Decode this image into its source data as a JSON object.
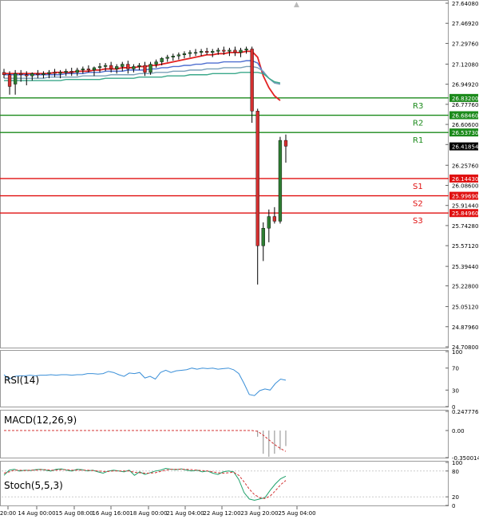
{
  "colors": {
    "up": "#2e7d32",
    "down": "#d32f2f",
    "wick": "#000000",
    "resistance": "#1b8a1b",
    "support": "#e01010",
    "ma_red": "#e32222",
    "ma_blue": "#4f6fd0",
    "ma_teal": "#3aa88a",
    "ma_gray": "#7aa0b8",
    "rsi": "#3a8fd8",
    "macd_signal": "#d33333",
    "macd_hist": "#8a8a8a",
    "stoch_k": "#1ea06a",
    "stoch_d": "#d33333"
  },
  "main": {
    "axis_ticks": [
      "27.64080",
      "27.46920",
      "27.29760",
      "27.12080",
      "26.94920",
      "26.77760",
      "26.60600",
      "26.43440",
      "26.25760",
      "26.08600",
      "25.91440",
      "25.74280",
      "25.57120",
      "25.39440",
      "25.22800",
      "25.05120",
      "24.87960",
      "24.70800"
    ],
    "current_price": "26.41854",
    "levels": [
      {
        "name": "R3",
        "value": "26.83200",
        "kind": "resistance"
      },
      {
        "name": "R2",
        "value": "26.68460",
        "kind": "resistance"
      },
      {
        "name": "R1",
        "value": "26.53730",
        "kind": "resistance"
      },
      {
        "name": "S1",
        "value": "26.14430",
        "kind": "support"
      },
      {
        "name": "S2",
        "value": "25.99690",
        "kind": "support"
      },
      {
        "name": "S3",
        "value": "25.84960",
        "kind": "support"
      }
    ]
  },
  "rsi": {
    "label": "RSI(14)",
    "ticks": [
      "100",
      "70",
      "30",
      "0"
    ]
  },
  "macd": {
    "label": "MACD(12,26,9)",
    "ticks": [
      "0.247776",
      "0.00",
      "-0.350014"
    ]
  },
  "stoch": {
    "label": "Stoch(5,5,3)",
    "ticks": [
      "100",
      "80",
      "20",
      "0"
    ]
  },
  "x_labels": [
    "20:00",
    "14 Aug 00:00",
    "15 Aug 08:00",
    "16 Aug 16:00",
    "18 Aug 00:00",
    "21 Aug 04:00",
    "22 Aug 12:00",
    "23 Aug 20:00",
    "25 Aug 04:00"
  ],
  "chart_data": {
    "type": "candlestick",
    "y_range": [
      24.708,
      27.6408
    ],
    "candles": [
      {
        "o": 27.05,
        "h": 27.08,
        "l": 27.0,
        "c": 27.03
      },
      {
        "o": 27.03,
        "h": 27.06,
        "l": 26.86,
        "c": 26.93
      },
      {
        "o": 26.95,
        "h": 27.07,
        "l": 26.86,
        "c": 27.04
      },
      {
        "o": 27.04,
        "h": 27.07,
        "l": 26.97,
        "c": 27.03
      },
      {
        "o": 27.03,
        "h": 27.06,
        "l": 26.94,
        "c": 27.02
      },
      {
        "o": 27.02,
        "h": 27.05,
        "l": 26.98,
        "c": 27.04
      },
      {
        "o": 27.04,
        "h": 27.07,
        "l": 27.0,
        "c": 27.03
      },
      {
        "o": 27.03,
        "h": 27.06,
        "l": 27.0,
        "c": 27.04
      },
      {
        "o": 27.04,
        "h": 27.07,
        "l": 27.0,
        "c": 27.05
      },
      {
        "o": 27.05,
        "h": 27.08,
        "l": 27.01,
        "c": 27.04
      },
      {
        "o": 27.04,
        "h": 27.07,
        "l": 27.0,
        "c": 27.05
      },
      {
        "o": 27.05,
        "h": 27.08,
        "l": 27.02,
        "c": 27.06
      },
      {
        "o": 27.06,
        "h": 27.09,
        "l": 27.02,
        "c": 27.05
      },
      {
        "o": 27.05,
        "h": 27.09,
        "l": 27.02,
        "c": 27.07
      },
      {
        "o": 27.07,
        "h": 27.1,
        "l": 27.04,
        "c": 27.08
      },
      {
        "o": 27.08,
        "h": 27.11,
        "l": 27.05,
        "c": 27.07
      },
      {
        "o": 27.07,
        "h": 27.1,
        "l": 27.02,
        "c": 27.09
      },
      {
        "o": 27.09,
        "h": 27.13,
        "l": 27.05,
        "c": 27.1
      },
      {
        "o": 27.1,
        "h": 27.13,
        "l": 27.06,
        "c": 27.11
      },
      {
        "o": 27.11,
        "h": 27.14,
        "l": 27.05,
        "c": 27.08
      },
      {
        "o": 27.08,
        "h": 27.12,
        "l": 27.04,
        "c": 27.1
      },
      {
        "o": 27.1,
        "h": 27.14,
        "l": 27.06,
        "c": 27.12
      },
      {
        "o": 27.12,
        "h": 27.15,
        "l": 27.04,
        "c": 27.08
      },
      {
        "o": 27.08,
        "h": 27.12,
        "l": 27.05,
        "c": 27.1
      },
      {
        "o": 27.1,
        "h": 27.13,
        "l": 27.07,
        "c": 27.11
      },
      {
        "o": 27.11,
        "h": 27.14,
        "l": 27.02,
        "c": 27.05
      },
      {
        "o": 27.05,
        "h": 27.14,
        "l": 27.03,
        "c": 27.12
      },
      {
        "o": 27.12,
        "h": 27.16,
        "l": 27.09,
        "c": 27.14
      },
      {
        "o": 27.14,
        "h": 27.18,
        "l": 27.11,
        "c": 27.17
      },
      {
        "o": 27.17,
        "h": 27.2,
        "l": 27.14,
        "c": 27.18
      },
      {
        "o": 27.18,
        "h": 27.21,
        "l": 27.15,
        "c": 27.19
      },
      {
        "o": 27.19,
        "h": 27.22,
        "l": 27.16,
        "c": 27.2
      },
      {
        "o": 27.2,
        "h": 27.23,
        "l": 27.17,
        "c": 27.21
      },
      {
        "o": 27.21,
        "h": 27.24,
        "l": 27.18,
        "c": 27.22
      },
      {
        "o": 27.22,
        "h": 27.25,
        "l": 27.19,
        "c": 27.22
      },
      {
        "o": 27.22,
        "h": 27.25,
        "l": 27.19,
        "c": 27.23
      },
      {
        "o": 27.23,
        "h": 27.26,
        "l": 27.2,
        "c": 27.22
      },
      {
        "o": 27.22,
        "h": 27.25,
        "l": 27.18,
        "c": 27.23
      },
      {
        "o": 27.23,
        "h": 27.26,
        "l": 27.2,
        "c": 27.24
      },
      {
        "o": 27.24,
        "h": 27.27,
        "l": 27.2,
        "c": 27.23
      },
      {
        "o": 27.23,
        "h": 27.26,
        "l": 27.19,
        "c": 27.24
      },
      {
        "o": 27.24,
        "h": 27.27,
        "l": 27.19,
        "c": 27.22
      },
      {
        "o": 27.22,
        "h": 27.26,
        "l": 27.18,
        "c": 27.24
      },
      {
        "o": 27.24,
        "h": 27.27,
        "l": 27.21,
        "c": 27.25
      },
      {
        "o": 27.25,
        "h": 27.27,
        "l": 26.62,
        "c": 26.72
      },
      {
        "o": 26.72,
        "h": 26.74,
        "l": 25.24,
        "c": 25.57
      },
      {
        "o": 25.57,
        "h": 25.77,
        "l": 25.44,
        "c": 25.72
      },
      {
        "o": 25.72,
        "h": 25.88,
        "l": 25.6,
        "c": 25.82
      },
      {
        "o": 25.82,
        "h": 25.9,
        "l": 25.76,
        "c": 25.78
      },
      {
        "o": 25.78,
        "h": 26.5,
        "l": 25.76,
        "c": 26.47
      },
      {
        "o": 26.47,
        "h": 26.52,
        "l": 26.28,
        "c": 26.42
      }
    ],
    "moving_averages": [
      {
        "color_key": "ma_red",
        "values": [
          27.04,
          27.04,
          27.04,
          27.04,
          27.04,
          27.04,
          27.04,
          27.04,
          27.04,
          27.05,
          27.05,
          27.05,
          27.05,
          27.06,
          27.06,
          27.06,
          27.07,
          27.07,
          27.08,
          27.08,
          27.08,
          27.09,
          27.09,
          27.09,
          27.1,
          27.1,
          27.11,
          27.11,
          27.12,
          27.13,
          27.14,
          27.15,
          27.16,
          27.17,
          27.18,
          27.19,
          27.2,
          27.2,
          27.21,
          27.21,
          27.22,
          27.22,
          27.22,
          27.23,
          27.23,
          27.18,
          27.02,
          26.92,
          26.85,
          26.81
        ]
      },
      {
        "color_key": "ma_blue",
        "values": [
          27.03,
          27.03,
          27.03,
          27.03,
          27.03,
          27.03,
          27.03,
          27.03,
          27.03,
          27.03,
          27.03,
          27.04,
          27.04,
          27.04,
          27.04,
          27.05,
          27.05,
          27.05,
          27.06,
          27.06,
          27.06,
          27.06,
          27.07,
          27.07,
          27.07,
          27.07,
          27.08,
          27.08,
          27.09,
          27.09,
          27.1,
          27.1,
          27.11,
          27.11,
          27.12,
          27.12,
          27.13,
          27.13,
          27.13,
          27.14,
          27.14,
          27.14,
          27.14,
          27.15,
          27.15,
          27.13,
          27.05,
          27.0,
          26.96,
          26.95
        ]
      },
      {
        "color_key": "ma_gray",
        "values": [
          27.0,
          27.0,
          27.0,
          27.0,
          27.0,
          27.0,
          27.0,
          27.0,
          27.01,
          27.01,
          27.01,
          27.01,
          27.01,
          27.01,
          27.02,
          27.02,
          27.02,
          27.02,
          27.02,
          27.03,
          27.03,
          27.03,
          27.03,
          27.03,
          27.04,
          27.04,
          27.04,
          27.05,
          27.05,
          27.05,
          27.06,
          27.06,
          27.06,
          27.07,
          27.07,
          27.07,
          27.08,
          27.08,
          27.08,
          27.09,
          27.09,
          27.09,
          27.09,
          27.1,
          27.1,
          27.09,
          27.06,
          27.0,
          26.96,
          26.95
        ]
      },
      {
        "color_key": "ma_teal",
        "values": [
          26.98,
          26.98,
          26.98,
          26.98,
          26.98,
          26.98,
          26.98,
          26.98,
          26.98,
          26.98,
          26.98,
          26.99,
          26.99,
          26.99,
          26.99,
          26.99,
          26.99,
          26.99,
          27.0,
          27.0,
          27.0,
          27.0,
          27.0,
          27.0,
          27.01,
          27.01,
          27.01,
          27.01,
          27.01,
          27.02,
          27.02,
          27.02,
          27.02,
          27.03,
          27.03,
          27.03,
          27.03,
          27.04,
          27.04,
          27.04,
          27.04,
          27.04,
          27.05,
          27.05,
          27.05,
          27.05,
          27.04,
          27.0,
          26.97,
          26.96
        ]
      }
    ],
    "rsi": [
      58,
      50,
      55,
      56,
      56,
      57,
      56,
      57,
      57,
      58,
      57,
      58,
      58,
      57,
      58,
      58,
      60,
      60,
      59,
      60,
      64,
      62,
      58,
      55,
      61,
      60,
      62,
      52,
      55,
      50,
      62,
      66,
      62,
      65,
      66,
      67,
      70,
      68,
      70,
      69,
      70,
      68,
      69,
      70,
      67,
      60,
      42,
      22,
      20,
      29,
      32,
      30,
      42,
      50,
      48
    ],
    "macd": {
      "signal": [
        0.0,
        0.0,
        0.0,
        0.0,
        0.0,
        0.0,
        0.0,
        0.0,
        0.0,
        0.0,
        0.0,
        0.0,
        0.0,
        0.0,
        0.0,
        0.0,
        0.0,
        0.0,
        0.0,
        0.0,
        0.0,
        0.0,
        0.0,
        0.0,
        0.0,
        0.0,
        0.0,
        0.0,
        0.0,
        0.0,
        0.0,
        0.0,
        0.0,
        0.0,
        0.0,
        0.0,
        0.0,
        0.0,
        0.0,
        0.0,
        0.0,
        0.0,
        0.0,
        0.0,
        0.0,
        -0.01,
        -0.06,
        -0.12,
        -0.18,
        -0.23,
        -0.27
      ],
      "histogram": [
        0.0,
        0.0,
        0.0,
        0.0,
        0.0,
        0.0,
        0.0,
        0.0,
        0.0,
        0.0,
        0.0,
        0.0,
        0.0,
        0.0,
        0.0,
        0.0,
        0.0,
        0.0,
        0.0,
        0.0,
        0.0,
        0.0,
        0.0,
        0.0,
        0.0,
        0.0,
        0.0,
        0.0,
        0.0,
        0.0,
        0.0,
        0.0,
        0.0,
        0.0,
        0.0,
        0.0,
        0.0,
        0.0,
        0.0,
        0.0,
        0.0,
        0.0,
        0.0,
        0.0,
        0.0,
        -0.08,
        -0.3,
        -0.34,
        -0.3,
        -0.25,
        -0.2
      ]
    },
    "stoch": {
      "k": [
        70,
        82,
        84,
        80,
        82,
        81,
        83,
        84,
        82,
        80,
        84,
        85,
        82,
        80,
        84,
        83,
        80,
        82,
        78,
        75,
        80,
        82,
        80,
        78,
        82,
        70,
        78,
        72,
        76,
        80,
        82,
        86,
        84,
        83,
        85,
        82,
        80,
        82,
        78,
        80,
        75,
        72,
        78,
        80,
        78,
        60,
        30,
        15,
        12,
        15,
        18,
        35,
        50,
        62,
        68
      ],
      "d": [
        75,
        78,
        82,
        82,
        81,
        82,
        82,
        83,
        83,
        82,
        82,
        83,
        83,
        82,
        82,
        82,
        82,
        81,
        80,
        79,
        79,
        80,
        80,
        80,
        80,
        77,
        76,
        75,
        75,
        76,
        79,
        82,
        84,
        84,
        84,
        84,
        83,
        82,
        81,
        80,
        78,
        76,
        75,
        76,
        77,
        70,
        55,
        38,
        25,
        18,
        16,
        22,
        34,
        48,
        58
      ]
    }
  }
}
